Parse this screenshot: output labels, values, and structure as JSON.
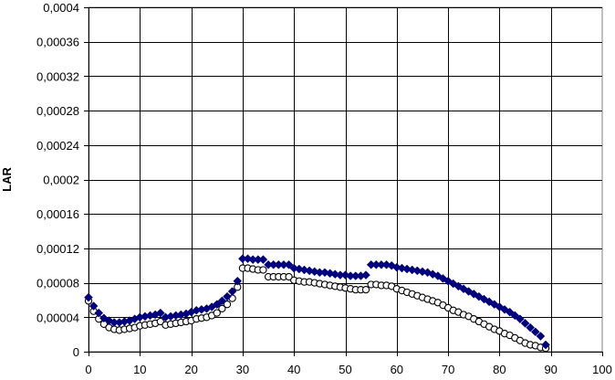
{
  "chart_data": {
    "type": "scatter",
    "title": "",
    "xlabel": "",
    "ylabel": "LAR",
    "xlim": [
      0,
      100
    ],
    "ylim": [
      0,
      0.0004
    ],
    "grid": true,
    "legend": "none",
    "x_ticks": [
      0,
      10,
      20,
      30,
      40,
      50,
      60,
      70,
      80,
      90,
      100
    ],
    "x_tick_labels": [
      "0",
      "10",
      "20",
      "30",
      "40",
      "50",
      "60",
      "70",
      "80",
      "90",
      "100"
    ],
    "y_ticks": [
      0,
      4e-05,
      8e-05,
      0.00012,
      0.00016,
      0.0002,
      0.00024,
      0.00028,
      0.00032,
      0.00036,
      0.0004
    ],
    "y_tick_labels": [
      "0",
      "0,00004",
      "0,00008",
      "0,00012",
      "0,00016",
      "0,0002",
      "0,00024",
      "0,00028",
      "0,00032",
      "0,00036",
      "0,0004"
    ],
    "series": [
      {
        "marker": "diamond",
        "color": "#00007f",
        "points": [
          [
            0,
            6.3e-05
          ],
          [
            1,
            5.3e-05
          ],
          [
            2,
            4.5e-05
          ],
          [
            3,
            3.9e-05
          ],
          [
            4,
            3.6e-05
          ],
          [
            5,
            3.4e-05
          ],
          [
            6,
            3.4e-05
          ],
          [
            7,
            3.5e-05
          ],
          [
            8,
            3.6e-05
          ],
          [
            9,
            3.8e-05
          ],
          [
            10,
            4e-05
          ],
          [
            11,
            4.1e-05
          ],
          [
            12,
            4.2e-05
          ],
          [
            13,
            4.3e-05
          ],
          [
            14,
            4.5e-05
          ],
          [
            15,
            4e-05
          ],
          [
            16,
            4.1e-05
          ],
          [
            17,
            4.2e-05
          ],
          [
            18,
            4.3e-05
          ],
          [
            19,
            4.4e-05
          ],
          [
            20,
            4.6e-05
          ],
          [
            21,
            4.8e-05
          ],
          [
            22,
            4.9e-05
          ],
          [
            23,
            5e-05
          ],
          [
            24,
            5.2e-05
          ],
          [
            25,
            5.5e-05
          ],
          [
            26,
            5.9e-05
          ],
          [
            27,
            6.4e-05
          ],
          [
            28,
            7e-05
          ],
          [
            29,
            8.2e-05
          ],
          [
            30,
            0.000108
          ],
          [
            31,
            0.000108
          ],
          [
            32,
            0.000107
          ],
          [
            33,
            0.000107
          ],
          [
            34,
            0.000107
          ],
          [
            35,
            0.000101
          ],
          [
            36,
            0.000101
          ],
          [
            37,
            0.000101
          ],
          [
            38,
            0.000101
          ],
          [
            39,
            0.000101
          ],
          [
            40,
            9.7e-05
          ],
          [
            41,
            9.6e-05
          ],
          [
            42,
            9.5e-05
          ],
          [
            43,
            9.4e-05
          ],
          [
            44,
            9.3e-05
          ],
          [
            45,
            9.2e-05
          ],
          [
            46,
            9.2e-05
          ],
          [
            47,
            9.1e-05
          ],
          [
            48,
            9e-05
          ],
          [
            49,
            8.9e-05
          ],
          [
            50,
            8.9e-05
          ],
          [
            51,
            8.8e-05
          ],
          [
            52,
            8.8e-05
          ],
          [
            53,
            8.8e-05
          ],
          [
            54,
            8.9e-05
          ],
          [
            55,
            0.000101
          ],
          [
            56,
            0.000101
          ],
          [
            57,
            0.000101
          ],
          [
            58,
            0.000101
          ],
          [
            59,
            0.0001
          ],
          [
            60,
            9.8e-05
          ],
          [
            61,
            9.7e-05
          ],
          [
            62,
            9.6e-05
          ],
          [
            63,
            9.5e-05
          ],
          [
            64,
            9.4e-05
          ],
          [
            65,
            9.3e-05
          ],
          [
            66,
            9.2e-05
          ],
          [
            67,
            9e-05
          ],
          [
            68,
            8.8e-05
          ],
          [
            69,
            8.5e-05
          ],
          [
            70,
            8.2e-05
          ],
          [
            71,
            7.9e-05
          ],
          [
            72,
            7.6e-05
          ],
          [
            73,
            7.3e-05
          ],
          [
            74,
            7e-05
          ],
          [
            75,
            6.7e-05
          ],
          [
            76,
            6.4e-05
          ],
          [
            77,
            6.1e-05
          ],
          [
            78,
            5.8e-05
          ],
          [
            79,
            5.5e-05
          ],
          [
            80,
            5.2e-05
          ],
          [
            81,
            4.9e-05
          ],
          [
            82,
            4.6e-05
          ],
          [
            83,
            4.2e-05
          ],
          [
            84,
            3.8e-05
          ],
          [
            85,
            3.3e-05
          ],
          [
            86,
            2.8e-05
          ],
          [
            87,
            2.3e-05
          ],
          [
            88,
            1.8e-05
          ],
          [
            89,
            8e-06
          ]
        ]
      },
      {
        "marker": "circle-open",
        "color": "#000000",
        "points": [
          [
            0,
            5.9e-05
          ],
          [
            1,
            4.7e-05
          ],
          [
            2,
            3.8e-05
          ],
          [
            3,
            3.2e-05
          ],
          [
            4,
            2.8e-05
          ],
          [
            5,
            2.6e-05
          ],
          [
            6,
            2.5e-05
          ],
          [
            7,
            2.6e-05
          ],
          [
            8,
            2.7e-05
          ],
          [
            9,
            2.8e-05
          ],
          [
            10,
            3e-05
          ],
          [
            11,
            3.1e-05
          ],
          [
            12,
            3.2e-05
          ],
          [
            13,
            3.3e-05
          ],
          [
            14,
            3.5e-05
          ],
          [
            15,
            3.1e-05
          ],
          [
            16,
            3.2e-05
          ],
          [
            17,
            3.3e-05
          ],
          [
            18,
            3.4e-05
          ],
          [
            19,
            3.5e-05
          ],
          [
            20,
            3.6e-05
          ],
          [
            21,
            3.8e-05
          ],
          [
            22,
            3.9e-05
          ],
          [
            23,
            4e-05
          ],
          [
            24,
            4.2e-05
          ],
          [
            25,
            4.5e-05
          ],
          [
            26,
            5e-05
          ],
          [
            27,
            5.5e-05
          ],
          [
            28,
            6.2e-05
          ],
          [
            29,
            7.5e-05
          ],
          [
            30,
            9.7e-05
          ],
          [
            31,
            9.7e-05
          ],
          [
            32,
            9.6e-05
          ],
          [
            33,
            9.5e-05
          ],
          [
            34,
            9.5e-05
          ],
          [
            35,
            8.7e-05
          ],
          [
            36,
            8.7e-05
          ],
          [
            37,
            8.7e-05
          ],
          [
            38,
            8.7e-05
          ],
          [
            39,
            8.7e-05
          ],
          [
            40,
            8.3e-05
          ],
          [
            41,
            8.2e-05
          ],
          [
            42,
            8.1e-05
          ],
          [
            43,
            8.1e-05
          ],
          [
            44,
            8e-05
          ],
          [
            45,
            7.9e-05
          ],
          [
            46,
            7.8e-05
          ],
          [
            47,
            7.7e-05
          ],
          [
            48,
            7.6e-05
          ],
          [
            49,
            7.5e-05
          ],
          [
            50,
            7.4e-05
          ],
          [
            51,
            7.3e-05
          ],
          [
            52,
            7.2e-05
          ],
          [
            53,
            7.2e-05
          ],
          [
            54,
            7.2e-05
          ],
          [
            55,
            7.8e-05
          ],
          [
            56,
            7.8e-05
          ],
          [
            57,
            7.7e-05
          ],
          [
            58,
            7.7e-05
          ],
          [
            59,
            7.6e-05
          ],
          [
            60,
            7.3e-05
          ],
          [
            61,
            7.1e-05
          ],
          [
            62,
            6.9e-05
          ],
          [
            63,
            6.7e-05
          ],
          [
            64,
            6.5e-05
          ],
          [
            65,
            6.3e-05
          ],
          [
            66,
            6.1e-05
          ],
          [
            67,
            5.9e-05
          ],
          [
            68,
            5.7e-05
          ],
          [
            69,
            5.4e-05
          ],
          [
            70,
            5.1e-05
          ],
          [
            71,
            4.8e-05
          ],
          [
            72,
            4.6e-05
          ],
          [
            73,
            4.3e-05
          ],
          [
            74,
            4.1e-05
          ],
          [
            75,
            3.8e-05
          ],
          [
            76,
            3.5e-05
          ],
          [
            77,
            3.2e-05
          ],
          [
            78,
            2.9e-05
          ],
          [
            79,
            2.6e-05
          ],
          [
            80,
            2.4e-05
          ],
          [
            81,
            2.1e-05
          ],
          [
            82,
            1.9e-05
          ],
          [
            83,
            1.6e-05
          ],
          [
            84,
            1.3e-05
          ],
          [
            85,
            1e-05
          ],
          [
            86,
            8e-06
          ],
          [
            87,
            7e-06
          ],
          [
            88,
            5e-06
          ],
          [
            89,
            4e-06
          ]
        ]
      }
    ]
  }
}
